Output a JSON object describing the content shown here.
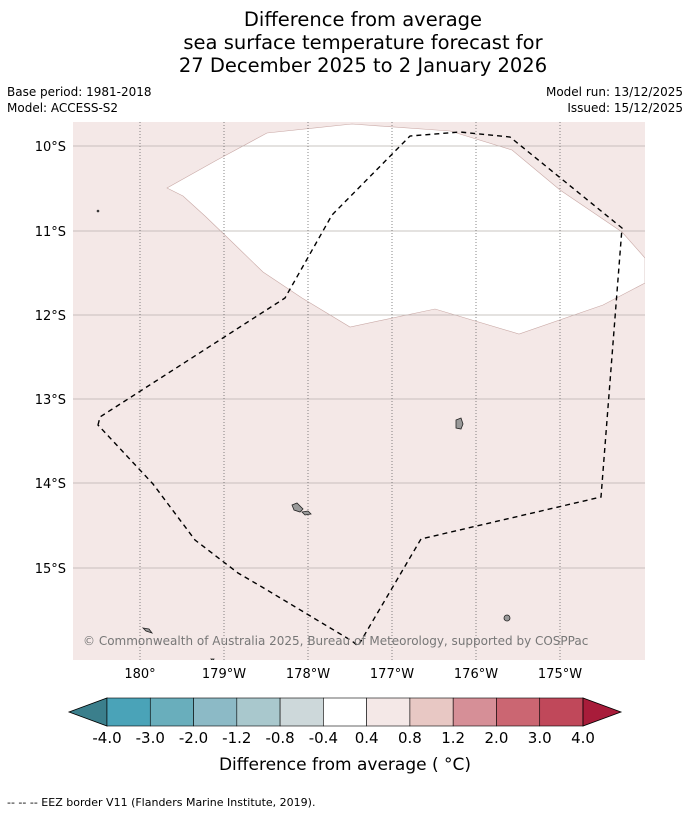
{
  "title": {
    "line1": "Difference from average",
    "line2": "sea surface temperature forecast for",
    "line3": "27 December 2025 to 2 January 2026"
  },
  "meta": {
    "base_period": "Base period: 1981-2018",
    "model": "Model: ACCESS-S2",
    "model_run": "Model run: 13/12/2025",
    "issued": "Issued: 15/12/2025"
  },
  "map": {
    "credit": "© Commonwealth of Australia 2025, Bureau of Meteorology, supported by COSPPac",
    "lat_labels": [
      "10°S",
      "11°S",
      "12°S",
      "13°S",
      "14°S",
      "15°S"
    ],
    "lon_labels": [
      "180°",
      "179°W",
      "178°W",
      "177°W",
      "176°W",
      "175°W"
    ],
    "ocean_color": "#f4e8e7",
    "neutral_color": "#ffffff"
  },
  "colorbar": {
    "ticks": [
      "-4.0",
      "-3.0",
      "-2.0",
      "-1.2",
      "-0.8",
      "-0.4",
      "0.4",
      "0.8",
      "1.2",
      "2.0",
      "3.0",
      "4.0"
    ],
    "colors": [
      "#3b7f8c",
      "#4aa3b8",
      "#69aebc",
      "#8cbac6",
      "#a9c8cd",
      "#cdd8da",
      "#ffffff",
      "#f4e8e7",
      "#e8c8c4",
      "#d68f97",
      "#cb6672",
      "#c0485a",
      "#a81c3a"
    ],
    "label": "Difference from average ( °C)"
  },
  "footer": "--  --  -- EEZ border V11 (Flanders Marine Institute, 2019)."
}
